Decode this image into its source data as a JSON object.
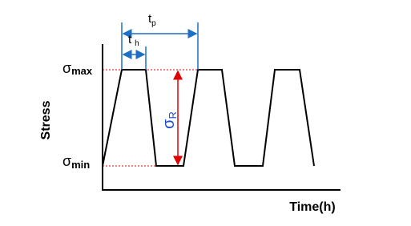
{
  "axes": {
    "y_label": "Stress",
    "x_label": "Time(h)"
  },
  "levels": {
    "max": {
      "symbol": "σ",
      "subscript": "max"
    },
    "min": {
      "symbol": "σ",
      "subscript": "min"
    }
  },
  "range": {
    "symbol": "σ",
    "subscript": "R"
  },
  "periods": {
    "tp": {
      "symbol": "t",
      "subscript": "p"
    },
    "th": {
      "symbol": "t",
      "subscript": "h"
    }
  }
}
